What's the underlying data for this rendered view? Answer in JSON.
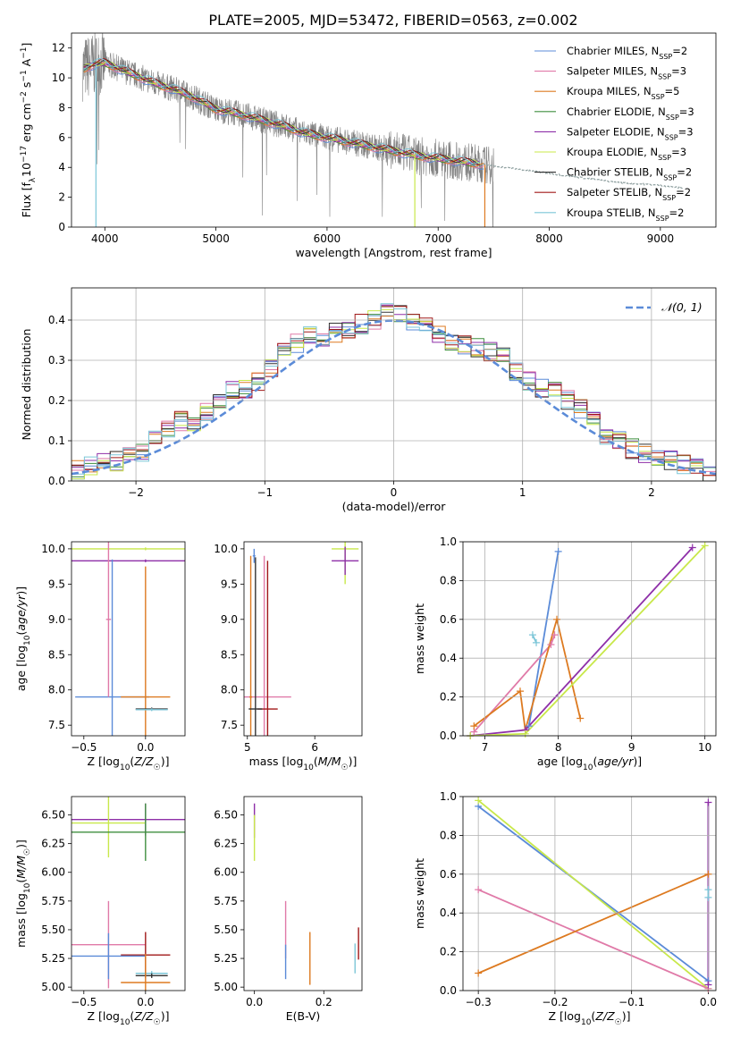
{
  "title": "PLATE=2005, MJD=53472, FIBERID=0563, z=0.002",
  "colors": {
    "chabrier_miles": "#5b8bd8",
    "salpeter_miles": "#e07aa8",
    "kroupa_miles": "#dd7a20",
    "chabrier_elodie": "#3f8f3f",
    "salpeter_elodie": "#8e2fa8",
    "kroupa_elodie": "#c8e84a",
    "chabrier_stelib": "#333333",
    "salpeter_stelib": "#a01818",
    "kroupa_stelib": "#7cc6d8",
    "data": "#808080"
  },
  "chart_data": [
    {
      "type": "line",
      "id": "spectrum",
      "xlabel": "wavelength [Angstrom, rest frame]",
      "ylabel": "Flux [f_λ10^-17 erg cm^-2 s^-1 A^-1]",
      "xlim": [
        3700,
        9500
      ],
      "ylim": [
        0,
        13
      ],
      "xticks": [
        4000,
        5000,
        6000,
        7000,
        8000,
        9000
      ],
      "yticks": [
        0,
        2,
        4,
        6,
        8,
        10,
        12
      ],
      "legend_position": "top-right",
      "series": [
        {
          "name": "Chabrier MILES, N_SSP=2",
          "legend_main": "Chabrier MILES, N",
          "legend_sub": "SSP",
          "legend_tail": "=2",
          "color": "#5b8bd8"
        },
        {
          "name": "Salpeter MILES, N_SSP=3",
          "legend_main": "Salpeter MILES, N",
          "legend_sub": "SSP",
          "legend_tail": "=3",
          "color": "#e07aa8"
        },
        {
          "name": "Kroupa MILES, N_SSP=5",
          "legend_main": "Kroupa MILES, N",
          "legend_sub": "SSP",
          "legend_tail": "=5",
          "color": "#dd7a20"
        },
        {
          "name": "Chabrier ELODIE, N_SSP=3",
          "legend_main": "Chabrier ELODIE, N",
          "legend_sub": "SSP",
          "legend_tail": "=3",
          "color": "#3f8f3f"
        },
        {
          "name": "Salpeter ELODIE, N_SSP=3",
          "legend_main": "Salpeter ELODIE, N",
          "legend_sub": "SSP",
          "legend_tail": "=3",
          "color": "#8e2fa8"
        },
        {
          "name": "Kroupa ELODIE, N_SSP=3",
          "legend_main": "Kroupa ELODIE, N",
          "legend_sub": "SSP",
          "legend_tail": "=3",
          "color": "#c8e84a"
        },
        {
          "name": "Chabrier STELIB, N_SSP=2",
          "legend_main": "Chabrier STELIB, N",
          "legend_sub": "SSP",
          "legend_tail": "=2",
          "color": "#333333"
        },
        {
          "name": "Salpeter STELIB, N_SSP=2",
          "legend_main": "Salpeter STELIB, N",
          "legend_sub": "SSP",
          "legend_tail": "=2",
          "color": "#a01818"
        },
        {
          "name": "Kroupa STELIB, N_SSP=2",
          "legend_main": "Kroupa STELIB, N",
          "legend_sub": "SSP",
          "legend_tail": "=2",
          "color": "#7cc6d8"
        }
      ],
      "continuum": {
        "x": [
          3800,
          3900,
          4000,
          4100,
          4200,
          4300,
          4400,
          4500,
          4600,
          4700,
          4800,
          4900,
          5000,
          5200,
          5400,
          5600,
          5800,
          6000,
          6200,
          6400,
          6600,
          6800,
          7000,
          7200,
          7400,
          7600,
          7800,
          8000,
          8200,
          8400,
          8600,
          8800,
          9000,
          9200
        ],
        "y": [
          10.6,
          10.9,
          11.0,
          10.7,
          10.4,
          10.1,
          9.8,
          9.5,
          9.3,
          9.0,
          8.7,
          8.3,
          7.9,
          7.6,
          7.2,
          6.8,
          6.3,
          6.0,
          5.7,
          5.4,
          5.1,
          4.8,
          4.6,
          4.4,
          4.2,
          4.0,
          3.8,
          3.6,
          3.4,
          3.2,
          3.0,
          2.9,
          2.8,
          2.6
        ]
      },
      "annotation_dips": [
        {
          "series": "Kroupa STELIB, N_SSP=2",
          "x": 3920
        },
        {
          "series": "Kroupa ELODIE, N_SSP=3",
          "x": 6790
        },
        {
          "series": "Kroupa MILES, N_SSP=5",
          "x": 7420
        }
      ]
    },
    {
      "type": "line",
      "id": "residual_histogram",
      "xlabel": "(data-model)/error",
      "ylabel": "Normed distribution",
      "xlim": [
        -2.5,
        2.5
      ],
      "ylim": [
        0,
        0.48
      ],
      "xticks": [
        -2,
        -1,
        0,
        1,
        2
      ],
      "xtick_labels": [
        "−2",
        "−1",
        "0",
        "1",
        "2"
      ],
      "yticks": [
        0,
        0.1,
        0.2,
        0.3,
        0.4
      ],
      "ytick_labels": [
        "0.0",
        "0.1",
        "0.2",
        "0.3",
        "0.4"
      ],
      "grid": true,
      "legend": {
        "label": "𝒩(0, 1)",
        "position": "top-right"
      },
      "bins": [
        -2.5,
        -2.4,
        -2.3,
        -2.2,
        -2.1,
        -2.0,
        -1.9,
        -1.8,
        -1.7,
        -1.6,
        -1.5,
        -1.4,
        -1.3,
        -1.2,
        -1.1,
        -1.0,
        -0.9,
        -0.8,
        -0.7,
        -0.6,
        -0.5,
        -0.4,
        -0.3,
        -0.2,
        -0.1,
        0.0,
        0.1,
        0.2,
        0.3,
        0.4,
        0.5,
        0.6,
        0.7,
        0.8,
        0.9,
        1.0,
        1.1,
        1.2,
        1.3,
        1.4,
        1.5,
        1.6,
        1.7,
        1.8,
        1.9,
        2.0,
        2.1,
        2.2,
        2.3,
        2.4,
        2.5
      ],
      "histogram": [
        0.03,
        0.04,
        0.05,
        0.05,
        0.06,
        0.07,
        0.1,
        0.13,
        0.15,
        0.14,
        0.17,
        0.2,
        0.23,
        0.23,
        0.25,
        0.28,
        0.32,
        0.34,
        0.36,
        0.35,
        0.37,
        0.38,
        0.39,
        0.4,
        0.42,
        0.42,
        0.4,
        0.39,
        0.36,
        0.35,
        0.34,
        0.33,
        0.32,
        0.31,
        0.27,
        0.25,
        0.23,
        0.22,
        0.2,
        0.18,
        0.16,
        0.11,
        0.1,
        0.08,
        0.07,
        0.06,
        0.05,
        0.04,
        0.03,
        0.02
      ],
      "gaussian": {
        "name": "𝒩(0, 1)",
        "mean": 0,
        "sigma": 1
      }
    },
    {
      "type": "scatter",
      "id": "age_vs_Z",
      "xlabel": "Z [log10(Z/Z☉)]",
      "ylabel": "age [log10(age/yr)]",
      "xlim": [
        -0.6,
        0.32
      ],
      "ylim": [
        7.35,
        10.1
      ],
      "xticks": [
        -0.5,
        0.0
      ],
      "xtick_labels": [
        "−0.5",
        "0.0"
      ],
      "yticks": [
        7.5,
        8.0,
        8.5,
        9.0,
        9.5,
        10.0
      ],
      "ytick_labels": [
        "7.5",
        "8.0",
        "8.5",
        "9.0",
        "9.5",
        "10.0"
      ],
      "points": [
        {
          "series": "Kroupa ELODIE, N_SSP=3",
          "x": 0.0,
          "y": 10.0,
          "xerr": 0.6,
          "yerr": 0.02
        },
        {
          "series": "Salpeter ELODIE, N_SSP=3",
          "x": 0.0,
          "y": 9.83,
          "xerr": 0.6,
          "yerr": 0.02
        },
        {
          "series": "Chabrier MILES, N_SSP=2",
          "x": -0.27,
          "y": 7.9,
          "xerr": 0.3,
          "yerr": 1.95
        },
        {
          "series": "Kroupa MILES, N_SSP=5",
          "x": 0.0,
          "y": 7.9,
          "xerr": 0.2,
          "yerr": 1.85
        },
        {
          "series": "Chabrier STELIB, N_SSP=2",
          "x": 0.05,
          "y": 7.73,
          "xerr": 0.13,
          "yerr": 0.02
        },
        {
          "series": "Kroupa STELIB, N_SSP=2",
          "x": 0.05,
          "y": 7.72,
          "xerr": 0.13,
          "yerr": 0.02
        },
        {
          "series": "Salpeter MILES, N_SSP=3",
          "x": -0.3,
          "y": 9.0,
          "xerr": 0.02,
          "yerr": 1.1
        }
      ]
    },
    {
      "type": "scatter",
      "id": "age_vs_mass",
      "xlabel": "mass [log10(M/M☉)]",
      "ylim": [
        7.35,
        10.1
      ],
      "xlim": [
        4.95,
        6.7
      ],
      "xticks": [
        5,
        6
      ],
      "yticks": [
        7.5,
        8.0,
        8.5,
        9.0,
        9.5,
        10.0
      ],
      "ytick_labels": [
        "7.5",
        "8.0",
        "8.5",
        "9.0",
        "9.5",
        "10.0"
      ],
      "points": [
        {
          "series": "Kroupa ELODIE, N_SSP=3",
          "x": 6.45,
          "y": 10.0,
          "xerr": 0.2,
          "yerr": 0.5
        },
        {
          "series": "Salpeter ELODIE, N_SSP=3",
          "x": 6.45,
          "y": 9.83,
          "xerr": 0.2,
          "yerr": 0.2
        },
        {
          "series": "Chabrier MILES, N_SSP=2",
          "x": 5.1,
          "y": 9.9,
          "xerr": 0.02,
          "yerr": 0.1
        },
        {
          "series": "Salpeter MILES, N_SSP=3",
          "x": 5.25,
          "y": 7.9,
          "xerr": 0.4,
          "yerr": 2.0
        },
        {
          "series": "Kroupa MILES, N_SSP=5",
          "x": 5.05,
          "y": 7.9,
          "xerr": 0.02,
          "yerr": 2.0
        },
        {
          "series": "Salpeter STELIB, N_SSP=2",
          "x": 5.3,
          "y": 7.73,
          "xerr": 0.15,
          "yerr": 2.1
        },
        {
          "series": "Chabrier STELIB, N_SSP=2",
          "x": 5.12,
          "y": 7.73,
          "xerr": 0.1,
          "yerr": 2.15
        }
      ]
    },
    {
      "type": "line",
      "id": "mass_weight_vs_age",
      "xlabel": "age [log10(age/yr)]",
      "ylabel": "mass weight",
      "xlim": [
        6.7,
        10.15
      ],
      "ylim": [
        0,
        1.0
      ],
      "xticks": [
        7,
        8,
        9,
        10
      ],
      "yticks": [
        0,
        0.2,
        0.4,
        0.6,
        0.8,
        1.0
      ],
      "ytick_labels": [
        "0.0",
        "0.2",
        "0.4",
        "0.6",
        "0.8",
        "1.0"
      ],
      "grid": true,
      "series": [
        {
          "name": "Chabrier MILES, N_SSP=2",
          "x": [
            7.6,
            8.0
          ],
          "y": [
            0.05,
            0.95
          ]
        },
        {
          "name": "Salpeter MILES, N_SSP=3",
          "x": [
            6.85,
            7.9,
            7.95
          ],
          "y": [
            0.02,
            0.47,
            0.52
          ]
        },
        {
          "name": "Kroupa MILES, N_SSP=5",
          "x": [
            6.85,
            7.48,
            7.55,
            7.98,
            8.3
          ],
          "y": [
            0.05,
            0.23,
            0.03,
            0.6,
            0.09
          ]
        },
        {
          "name": "Salpeter ELODIE, N_SSP=3",
          "x": [
            6.8,
            7.55,
            9.83
          ],
          "y": [
            0.0,
            0.03,
            0.97
          ]
        },
        {
          "name": "Kroupa ELODIE, N_SSP=3",
          "x": [
            6.8,
            7.55,
            10.0
          ],
          "y": [
            0.0,
            0.01,
            0.98
          ]
        },
        {
          "name": "Kroupa STELIB, N_SSP=2",
          "x": [
            7.65,
            7.7
          ],
          "y": [
            0.52,
            0.48
          ]
        }
      ]
    },
    {
      "type": "scatter",
      "id": "mass_vs_Z",
      "xlabel": "Z [log10(Z/Z☉)]",
      "ylabel": "mass [log10(M/M☉)]",
      "xlim": [
        -0.6,
        0.32
      ],
      "ylim": [
        4.97,
        6.66
      ],
      "xticks": [
        -0.5,
        0.0
      ],
      "xtick_labels": [
        "−0.5",
        "0.0"
      ],
      "yticks": [
        5.0,
        5.25,
        5.5,
        5.75,
        6.0,
        6.25,
        6.5
      ],
      "ytick_labels": [
        "5.00",
        "5.25",
        "5.50",
        "5.75",
        "6.00",
        "6.25",
        "6.50"
      ],
      "points": [
        {
          "series": "Salpeter ELODIE, N_SSP=3",
          "x": 0.0,
          "y": 6.46,
          "xerr": 0.6,
          "yerr": 0.14
        },
        {
          "series": "Kroupa ELODIE, N_SSP=3",
          "x": -0.3,
          "y": 6.43,
          "xerr": 0.3,
          "yerr": 0.3
        },
        {
          "series": "Chabrier ELODIE, N_SSP=3",
          "x": 0.0,
          "y": 6.35,
          "xerr": 0.6,
          "yerr": 0.25
        },
        {
          "series": "Salpeter MILES, N_SSP=3",
          "x": -0.3,
          "y": 5.37,
          "xerr": 0.3,
          "yerr": 0.38
        },
        {
          "series": "Salpeter STELIB, N_SSP=2",
          "x": 0.0,
          "y": 5.28,
          "xerr": 0.2,
          "yerr": 0.2
        },
        {
          "series": "Chabrier MILES, N_SSP=2",
          "x": -0.3,
          "y": 5.27,
          "xerr": 0.3,
          "yerr": 0.2
        },
        {
          "series": "Kroupa STELIB, N_SSP=2",
          "x": 0.05,
          "y": 5.12,
          "xerr": 0.13,
          "yerr": 0.02
        },
        {
          "series": "Chabrier STELIB, N_SSP=2",
          "x": 0.05,
          "y": 5.1,
          "xerr": 0.13,
          "yerr": 0.02
        },
        {
          "series": "Kroupa MILES, N_SSP=5",
          "x": 0.0,
          "y": 5.04,
          "xerr": 0.2,
          "yerr": 0.25
        }
      ]
    },
    {
      "type": "scatter",
      "id": "mass_vs_ebv",
      "xlabel": "E(B-V)",
      "xlim": [
        -0.03,
        0.31
      ],
      "ylim": [
        4.97,
        6.66
      ],
      "xticks": [
        0.0,
        0.2
      ],
      "xtick_labels": [
        "0.0",
        "0.2"
      ],
      "yticks": [
        5.0,
        5.25,
        5.5,
        5.75,
        6.0,
        6.25,
        6.5
      ],
      "ytick_labels": [
        "5.00",
        "5.25",
        "5.50",
        "5.75",
        "6.00",
        "6.25",
        "6.50"
      ],
      "points": [
        {
          "series": "Salpeter ELODIE, N_SSP=3",
          "x": 0.0,
          "y": 6.45,
          "yerr": 0.15
        },
        {
          "series": "Kroupa ELODIE, N_SSP=3",
          "x": 0.0,
          "y": 6.3,
          "yerr": 0.2
        },
        {
          "series": "Salpeter MILES, N_SSP=3",
          "x": 0.09,
          "y": 5.5,
          "yerr": 0.25
        },
        {
          "series": "Chabrier MILES, N_SSP=2",
          "x": 0.09,
          "y": 5.22,
          "yerr": 0.15
        },
        {
          "series": "Kroupa MILES, N_SSP=5",
          "x": 0.16,
          "y": 5.25,
          "yerr": 0.23
        },
        {
          "series": "Salpeter STELIB, N_SSP=2",
          "x": 0.3,
          "y": 5.38,
          "yerr": 0.14
        },
        {
          "series": "Kroupa STELIB, N_SSP=2",
          "x": 0.29,
          "y": 5.25,
          "yerr": 0.13
        }
      ]
    },
    {
      "type": "line",
      "id": "mass_weight_vs_Z",
      "xlabel": "Z [log10(Z/Z☉)]",
      "ylabel": "mass weight",
      "xlim": [
        -0.32,
        0.01
      ],
      "ylim": [
        0,
        1.0
      ],
      "xticks": [
        -0.3,
        -0.2,
        -0.1,
        0.0
      ],
      "xtick_labels": [
        "−0.3",
        "−0.2",
        "−0.1",
        "0.0"
      ],
      "yticks": [
        0,
        0.2,
        0.4,
        0.6,
        0.8,
        1.0
      ],
      "ytick_labels": [
        "0.0",
        "0.2",
        "0.4",
        "0.6",
        "0.8",
        "1.0"
      ],
      "grid": true,
      "series": [
        {
          "name": "Chabrier MILES, N_SSP=2",
          "x": [
            -0.3,
            0.0
          ],
          "y": [
            0.95,
            0.05
          ]
        },
        {
          "name": "Kroupa ELODIE, N_SSP=3",
          "x": [
            -0.3,
            0.0
          ],
          "y": [
            0.98,
            0.01
          ]
        },
        {
          "name": "Salpeter MILES, N_SSP=3",
          "x": [
            -0.3,
            0.0
          ],
          "y": [
            0.52,
            0.01
          ]
        },
        {
          "name": "Kroupa MILES, N_SSP=5",
          "x": [
            -0.3,
            0.0
          ],
          "y": [
            0.09,
            0.6
          ]
        },
        {
          "name": "Salpeter ELODIE, N_SSP=3",
          "x": [
            0.0,
            0.0
          ],
          "y": [
            0.97,
            0.03
          ]
        },
        {
          "name": "Kroupa STELIB, N_SSP=2",
          "x": [
            0.0,
            0.0
          ],
          "y": [
            0.52,
            0.48
          ]
        }
      ]
    }
  ]
}
